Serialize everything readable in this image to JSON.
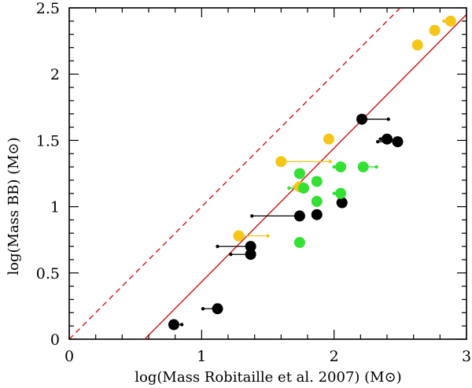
{
  "chart_data": {
    "type": "scatter",
    "title": "",
    "xlabel": "log(Mass Robitaille et al. 2007) (M⊙)",
    "ylabel": "log(Mass BB)  (M⊙)",
    "xlim": [
      0,
      3
    ],
    "ylim": [
      0,
      2.5
    ],
    "x_ticks": [
      0,
      1,
      2,
      3
    ],
    "x_tick_labels": [
      "0",
      "1",
      "2",
      "3"
    ],
    "y_ticks": [
      0,
      0.5,
      1,
      1.5,
      2,
      2.5
    ],
    "y_tick_labels": [
      "0",
      "0.5",
      "1",
      "1.5",
      "2",
      "2.5"
    ],
    "grid": false,
    "colors": {
      "black": "#000000",
      "yellow": "#f5c518",
      "green": "#33e033",
      "line": "#d11111"
    },
    "lines": [
      {
        "name": "one-to-one",
        "style": "dashed",
        "color": "#d11111",
        "points": [
          [
            0,
            0
          ],
          [
            2.5,
            2.5
          ]
        ]
      },
      {
        "name": "fit",
        "style": "solid",
        "color": "#d11111",
        "points": [
          [
            0.57,
            0
          ],
          [
            3,
            2.45
          ]
        ]
      }
    ],
    "series": [
      {
        "name": "black",
        "color": "#000000",
        "points": [
          {
            "x": 0.79,
            "y": 0.11,
            "x_alt": 0.85
          },
          {
            "x": 1.12,
            "y": 0.23,
            "x_alt": 1.01
          },
          {
            "x": 1.37,
            "y": 0.64,
            "x_alt": 1.22
          },
          {
            "x": 1.37,
            "y": 0.7,
            "x_alt": 1.12
          },
          {
            "x": 1.74,
            "y": 0.93,
            "x_alt": 1.38
          },
          {
            "x": 1.87,
            "y": 0.94,
            "x_alt": null
          },
          {
            "x": 2.06,
            "y": 1.03,
            "x_alt": 2.03
          },
          {
            "x": 2.21,
            "y": 1.66,
            "x_alt": 2.41
          },
          {
            "x": 2.4,
            "y": 1.51,
            "x_alt": 2.35
          },
          {
            "x": 2.48,
            "y": 1.49,
            "x_alt": 2.33
          }
        ]
      },
      {
        "name": "yellow",
        "color": "#f5c518",
        "points": [
          {
            "x": 1.28,
            "y": 0.78,
            "x_alt": 1.5
          },
          {
            "x": 1.6,
            "y": 1.34,
            "x_alt": 1.97
          },
          {
            "x": 1.74,
            "y": 1.15,
            "x_alt": 1.7
          },
          {
            "x": 1.96,
            "y": 1.51,
            "x_alt": null
          },
          {
            "x": 2.63,
            "y": 2.22,
            "x_alt": null
          },
          {
            "x": 2.76,
            "y": 2.33,
            "x_alt": null
          },
          {
            "x": 2.88,
            "y": 2.4,
            "x_alt": 2.83
          }
        ]
      },
      {
        "name": "green",
        "color": "#33e033",
        "points": [
          {
            "x": 1.74,
            "y": 0.73,
            "x_alt": null
          },
          {
            "x": 1.74,
            "y": 1.25,
            "x_alt": null
          },
          {
            "x": 1.77,
            "y": 1.14,
            "x_alt": 1.66
          },
          {
            "x": 1.87,
            "y": 1.19,
            "x_alt": null
          },
          {
            "x": 1.87,
            "y": 1.04,
            "x_alt": null
          },
          {
            "x": 2.05,
            "y": 1.3,
            "x_alt": 2.0
          },
          {
            "x": 2.05,
            "y": 1.1,
            "x_alt": 2.0
          },
          {
            "x": 2.22,
            "y": 1.3,
            "x_alt": 2.32
          }
        ]
      }
    ]
  }
}
